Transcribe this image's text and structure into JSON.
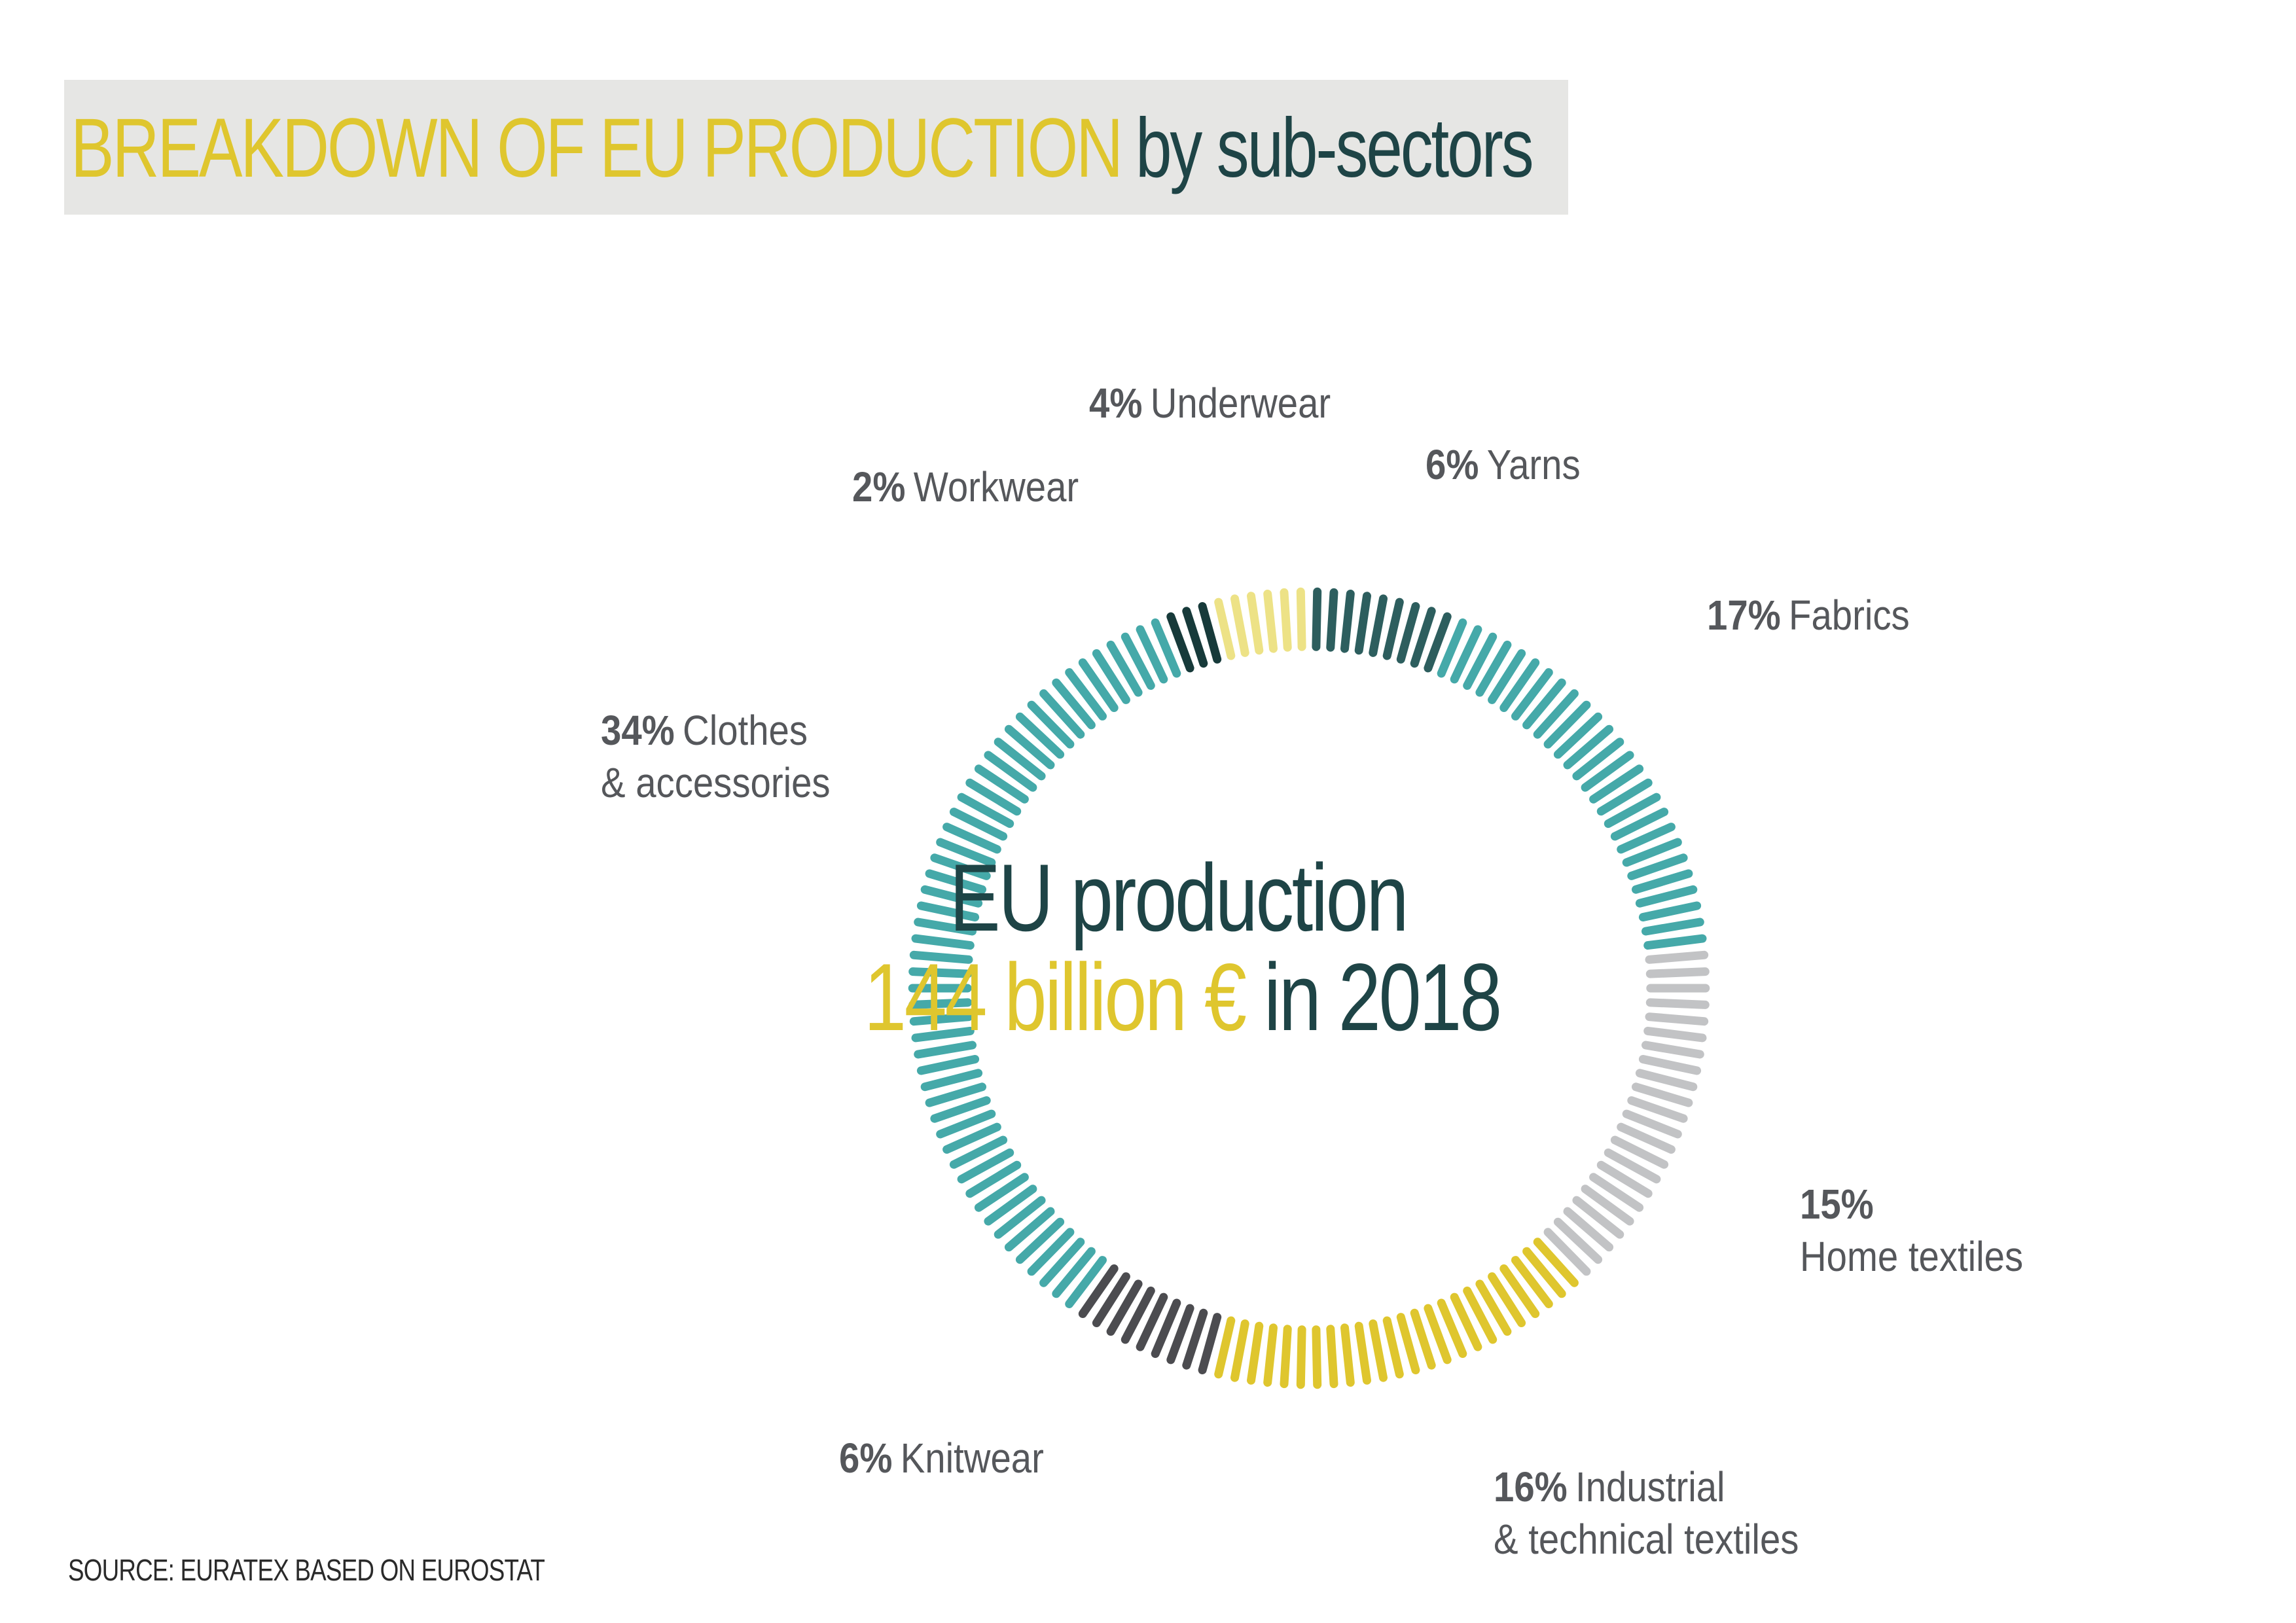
{
  "title": {
    "part1": "BREAKDOWN OF EU PRODUCTION",
    "part2": "by sub-sectors"
  },
  "center": {
    "line1": "EU production",
    "amount": "144 billion €",
    "year": "in 2018"
  },
  "source": "SOURCE: EURATEX BASED ON EUROSTAT",
  "colors": {
    "yellow": "#dfc62e",
    "light_yellow": "#ede286",
    "teal": "#45a9a9",
    "dark_teal": "#2d5e5e",
    "very_dark_teal": "#173a3a",
    "grey": "#c2c3c5",
    "dark_grey": "#4c4c50",
    "text_grey": "#55575b"
  },
  "chart_data": {
    "type": "pie",
    "style": "radial-bar-donut",
    "total": "144 billion €",
    "year": "2018",
    "slices": [
      {
        "pct_label": "6%",
        "name": "Yarns",
        "value": 6,
        "color": "#2d5e5e"
      },
      {
        "pct_label": "17%",
        "name": "Fabrics",
        "value": 17,
        "color": "#45a9a9"
      },
      {
        "pct_label": "15%",
        "name": "Home textiles",
        "value": 15,
        "color": "#c2c3c5"
      },
      {
        "pct_label": "16%",
        "name": "Industrial & technical textiles",
        "value": 16,
        "color": "#dfc62e"
      },
      {
        "pct_label": "6%",
        "name": "Knitwear",
        "value": 6,
        "color": "#4c4c50"
      },
      {
        "pct_label": "34%",
        "name": "Clothes & accessories",
        "value": 34,
        "color": "#45a9a9"
      },
      {
        "pct_label": "2%",
        "name": "Workwear",
        "value": 2,
        "color": "#173a3a"
      },
      {
        "pct_label": "4%",
        "name": "Underwear",
        "value": 4,
        "color": "#ede286"
      }
    ]
  }
}
